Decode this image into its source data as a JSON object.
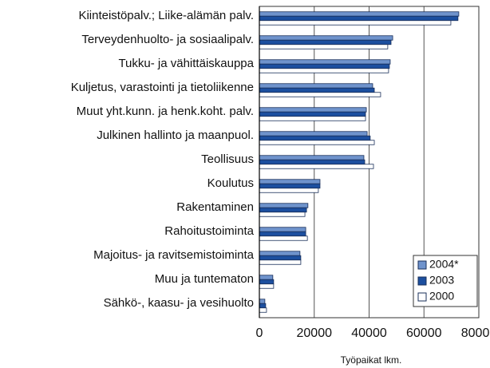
{
  "chart_data": {
    "type": "hbar",
    "x_label": "Työpaikat lkm.",
    "categories": [
      "Kiinteistöpalv.; Liike-alämän palv.",
      "Terveydenhuolto- ja sosiaalipalv.",
      "Tukku- ja vähittäiskauppa",
      "Kuljetus, varastointi ja tietoliikenne",
      "Muut yht.kunn. ja henk.koht. palv.",
      "Julkinen hallinto ja maanpuol.",
      "Teollisuus",
      "Koulutus",
      "Rakentaminen",
      "Rahoitustoiminta",
      "Majoitus- ja ravitsemistoiminta",
      "Muu ja tuntematon",
      "Sähkö-, kaasu- ja vesihuolto"
    ],
    "series": [
      {
        "name": "2004*",
        "color": "#6f93cc",
        "values": [
          72700,
          48600,
          47700,
          41300,
          39000,
          39300,
          38100,
          22100,
          17700,
          16900,
          14800,
          4900,
          2000
        ]
      },
      {
        "name": "2003",
        "color": "#1c4f9f",
        "values": [
          72400,
          48000,
          47400,
          41900,
          38700,
          40400,
          38400,
          22100,
          17200,
          16900,
          15100,
          5200,
          2300
        ]
      },
      {
        "name": "2000",
        "color": "#ffffff",
        "values": [
          69800,
          46800,
          47100,
          44200,
          38700,
          41900,
          41600,
          21500,
          16600,
          17500,
          15100,
          5200,
          2600
        ]
      }
    ],
    "xlim": [
      0,
      80000
    ],
    "xticks": [
      0,
      20000,
      40000,
      60000,
      80000
    ],
    "grid": true,
    "legend": "lower right"
  }
}
